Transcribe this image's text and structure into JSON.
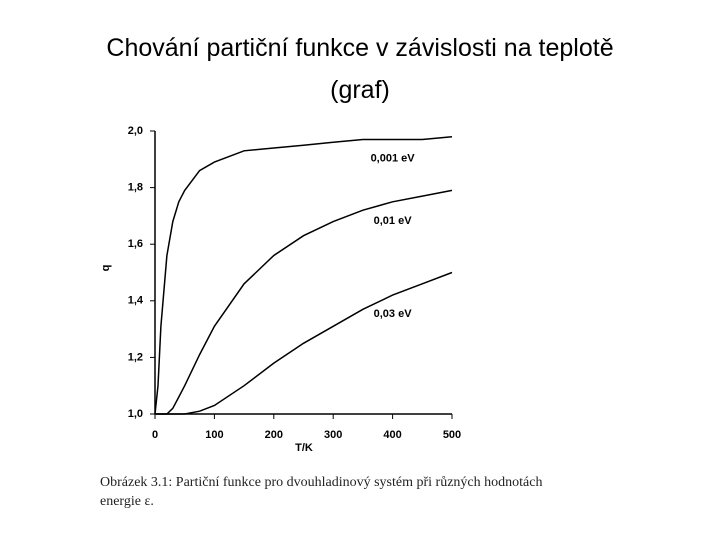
{
  "slide": {
    "title": [
      "Chování partiční funkce v závislosti na teplotě",
      "(graf)"
    ],
    "caption": [
      "Obrázek 3.1: Partiční funkce pro dvouhladinový systém při různých hodnotách",
      "energie ε."
    ]
  },
  "chart_data": {
    "type": "line",
    "x_label": "T/K",
    "y_label": "q",
    "x": [
      0,
      5,
      10,
      20,
      30,
      40,
      50,
      75,
      100,
      150,
      200,
      250,
      300,
      350,
      400,
      450,
      500
    ],
    "series": [
      {
        "name": "0,001 eV",
        "color": "#000000",
        "values": [
          1.0,
          1.1,
          1.31,
          1.56,
          1.68,
          1.75,
          1.79,
          1.86,
          1.89,
          1.93,
          1.94,
          1.95,
          1.96,
          1.97,
          1.97,
          1.97,
          1.98
        ]
      },
      {
        "name": "0,01 eV",
        "color": "#000000",
        "values": [
          1.0,
          1.0,
          1.0,
          1.0,
          1.02,
          1.06,
          1.1,
          1.21,
          1.31,
          1.46,
          1.56,
          1.63,
          1.68,
          1.72,
          1.75,
          1.77,
          1.79
        ]
      },
      {
        "name": "0,03 eV",
        "color": "#000000",
        "values": [
          1.0,
          1.0,
          1.0,
          1.0,
          1.0,
          1.0,
          1.0,
          1.01,
          1.03,
          1.1,
          1.18,
          1.25,
          1.31,
          1.37,
          1.42,
          1.46,
          1.5
        ]
      }
    ],
    "xlim": [
      0,
      500
    ],
    "xticks": [
      0,
      100,
      200,
      300,
      400,
      500
    ],
    "ylim": [
      1.0,
      2.0
    ],
    "yticks": [
      {
        "value": 1.0,
        "label": "1,0"
      },
      {
        "value": 1.2,
        "label": "1,2"
      },
      {
        "value": 1.4,
        "label": "1,4"
      },
      {
        "value": 1.6,
        "label": "1,6"
      },
      {
        "value": 1.8,
        "label": "1,8"
      },
      {
        "value": 2.0,
        "label": "2,0"
      }
    ]
  }
}
